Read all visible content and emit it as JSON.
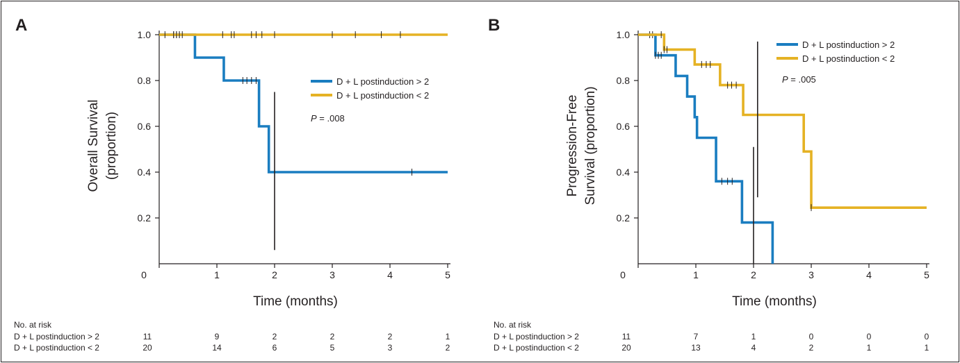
{
  "colors": {
    "series_gt2": "#1a7dc0",
    "series_lt2": "#e5b224",
    "ink": "#231f20"
  },
  "panels": [
    {
      "letter": "A",
      "pvalue_label": "P",
      "pvalue_rest": " = .008",
      "xlabel": "Time (months)",
      "ylabel_line1": "Overall Survival",
      "ylabel_line2": "(proportion)",
      "risk": {
        "title": "No. at risk",
        "rows": [
          {
            "label": "D + L postinduction > 2",
            "counts": [
              "11",
              "9",
              "2",
              "2",
              "2",
              "1"
            ]
          },
          {
            "label": "D + L postinduction < 2",
            "counts": [
              "20",
              "14",
              "6",
              "5",
              "3",
              "2"
            ]
          }
        ]
      }
    },
    {
      "letter": "B",
      "pvalue_label": "P",
      "pvalue_rest": " = .005",
      "xlabel": "Time (months)",
      "ylabel_line1": "Progression-Free",
      "ylabel_line2": "Survival (proportion)",
      "risk": {
        "title": "No. at risk",
        "rows": [
          {
            "label": "D + L postinduction > 2",
            "counts": [
              "11",
              "7",
              "1",
              "0",
              "0",
              "0"
            ]
          },
          {
            "label": "D + L postinduction < 2",
            "counts": [
              "20",
              "13",
              "4",
              "2",
              "1",
              "1"
            ]
          }
        ]
      }
    }
  ],
  "chart_data": [
    {
      "type": "line",
      "subtype": "kaplan-meier",
      "title": "",
      "xlabel": "Time (months)",
      "ylabel": "Overall Survival (proportion)",
      "xlim": [
        0,
        5
      ],
      "ylim": [
        0,
        1.0
      ],
      "xticks": [
        0,
        1,
        2,
        3,
        4,
        5
      ],
      "yticks": [
        0.2,
        0.4,
        0.6,
        0.8,
        1.0
      ],
      "ytick_labels": [
        "0.2",
        "0.4",
        "0.6",
        "0.8",
        "1.0"
      ],
      "grid": false,
      "legend_position": "center-right",
      "series": [
        {
          "name": "D + L postinduction > 2",
          "color_key": "series_gt2",
          "steps": [
            [
              0,
              1.0
            ],
            [
              0.62,
              0.9
            ],
            [
              1.12,
              0.8
            ],
            [
              1.73,
              0.6
            ],
            [
              1.9,
              0.4
            ]
          ],
          "end": 5,
          "censor": [
            0.25,
            0.3,
            0.35,
            1.45,
            1.52,
            1.6,
            1.68,
            4.38
          ]
        },
        {
          "name": "D + L postinduction < 2",
          "color_key": "series_lt2",
          "steps": [
            [
              0,
              1.0
            ]
          ],
          "end": 5,
          "censor": [
            0.1,
            0.25,
            0.3,
            0.35,
            0.4,
            1.1,
            1.25,
            1.3,
            1.6,
            1.68,
            1.78,
            2.0,
            3.0,
            3.4,
            3.85,
            4.18
          ]
        }
      ],
      "reference_line": {
        "x": 2.0,
        "y1": 0.06,
        "y2": 0.75
      }
    },
    {
      "type": "line",
      "subtype": "kaplan-meier",
      "title": "",
      "xlabel": "Time (months)",
      "ylabel": "Progression-Free Survival (proportion)",
      "xlim": [
        0,
        5
      ],
      "ylim": [
        0,
        1.0
      ],
      "xticks": [
        0,
        1,
        2,
        3,
        4,
        5
      ],
      "yticks": [
        0.2,
        0.4,
        0.6,
        0.8,
        1.0
      ],
      "ytick_labels": [
        "0.2",
        "0.4",
        "0.6",
        "0.8",
        "1.0"
      ],
      "grid": false,
      "legend_position": "top-right",
      "series": [
        {
          "name": "D + L postinduction > 2",
          "color_key": "series_gt2",
          "steps": [
            [
              0,
              1.0
            ],
            [
              0.3,
              0.91
            ],
            [
              0.65,
              0.82
            ],
            [
              0.85,
              0.73
            ],
            [
              0.98,
              0.64
            ],
            [
              1.02,
              0.55
            ],
            [
              1.35,
              0.36
            ],
            [
              1.8,
              0.18
            ],
            [
              2.33,
              0
            ]
          ],
          "end": 2.33,
          "censor": [
            0.2,
            0.25,
            0.3,
            0.35,
            0.4,
            1.45,
            1.55,
            1.63
          ]
        },
        {
          "name": "D + L postinduction < 2",
          "color_key": "series_lt2",
          "steps": [
            [
              0,
              1.0
            ],
            [
              0.45,
              0.935
            ],
            [
              0.98,
              0.87
            ],
            [
              1.42,
              0.78
            ],
            [
              1.82,
              0.65
            ],
            [
              2.87,
              0.49
            ],
            [
              3.0,
              0.245
            ]
          ],
          "end": 5,
          "censor": [
            0.4,
            0.45,
            0.5,
            1.1,
            1.18,
            1.25,
            1.55,
            1.62,
            1.7,
            3.0
          ]
        }
      ],
      "reference_line": {
        "x": 2.0,
        "y1": 0.0,
        "y2": 0.51
      },
      "reference_line_2": {
        "x": 2.07,
        "y1": 0.29,
        "y2": 0.97
      }
    }
  ]
}
